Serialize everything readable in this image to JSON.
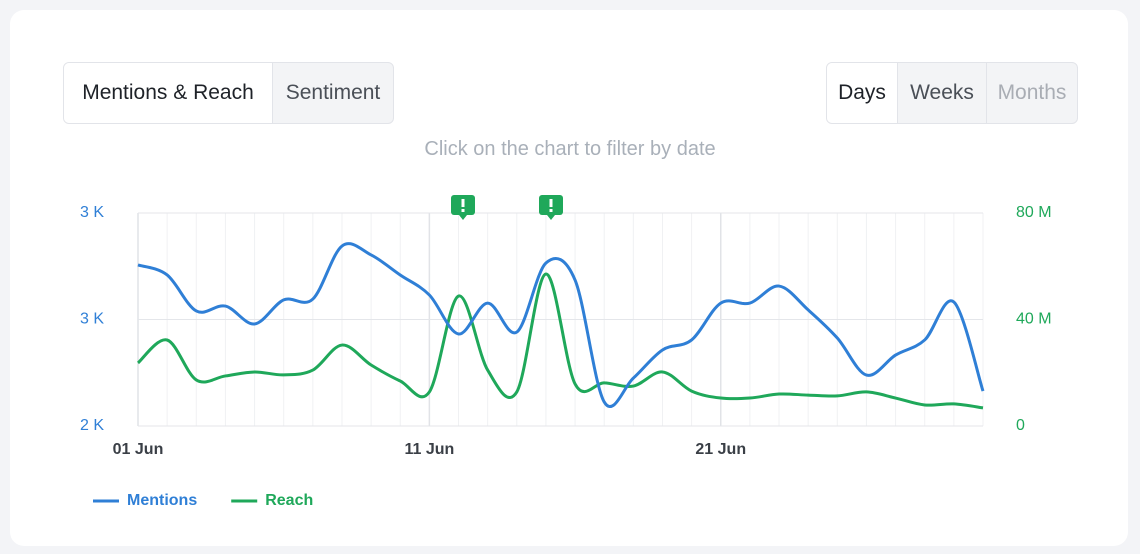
{
  "tabs": [
    "Mentions & Reach",
    "Sentiment"
  ],
  "periods": [
    "Days",
    "Weeks",
    "Months"
  ],
  "hint": "Click on the chart to filter by date",
  "chart_data": {
    "type": "line",
    "categories": [
      "01 Jun",
      null,
      null,
      null,
      null,
      null,
      null,
      null,
      null,
      null,
      "11 Jun",
      null,
      null,
      null,
      null,
      null,
      null,
      null,
      null,
      null,
      "21 Jun",
      null,
      null,
      null,
      null,
      null,
      null,
      null,
      null,
      null
    ],
    "series": [
      {
        "name": "Mentions",
        "color": "#2f7fd6",
        "axis": "y",
        "values": [
          2756,
          2709,
          2540,
          2563,
          2479,
          2592,
          2596,
          2845,
          2803,
          2709,
          2615,
          2432,
          2577,
          2441,
          2765,
          2685,
          2113,
          2225,
          2357,
          2404,
          2577,
          2577,
          2657,
          2545,
          2413,
          2239,
          2333,
          2404,
          2582,
          2164
        ]
      },
      {
        "name": "Reach",
        "color": "#1fa85a",
        "axis": "y2",
        "values": [
          23700000,
          32300000,
          17300000,
          18800000,
          20300000,
          19200000,
          21000000,
          30400000,
          22900000,
          16900000,
          12800000,
          48800000,
          21000000,
          12800000,
          57100000,
          15800000,
          16200000,
          15000000,
          20300000,
          13100000,
          10500000,
          10500000,
          12000000,
          11600000,
          11300000,
          12800000,
          10500000,
          7900000,
          8300000,
          6800000
        ]
      }
    ],
    "ylim": [
      2000,
      3000
    ],
    "yticks": [
      {
        "value": 2000,
        "label": "2 K"
      },
      {
        "value": 2500,
        "label": "3 K"
      },
      {
        "value": 3000,
        "label": "3 K"
      }
    ],
    "y2lim": [
      0,
      80000000
    ],
    "y2ticks": [
      {
        "value": 0,
        "label": "0"
      },
      {
        "value": 40000000,
        "label": "40 M"
      },
      {
        "value": 80000000,
        "label": "80 M"
      }
    ],
    "grid": true,
    "legend": "bottom-left"
  }
}
